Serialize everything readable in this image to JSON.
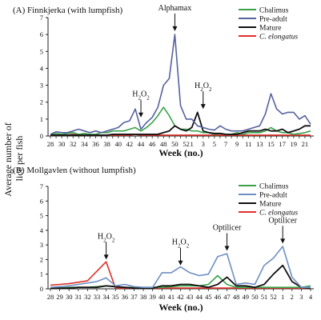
{
  "ylabel_line1": "Average number of",
  "ylabel_line2": "lice per fish",
  "chart_data": [
    {
      "type": "line",
      "title": "(A)   Finnkjerka (with lumpfish)",
      "xlabel": "Week (no.)",
      "ylim": [
        0,
        7
      ],
      "yticks": [
        0,
        1,
        2,
        3,
        4,
        5,
        6,
        7
      ],
      "weeks": [
        "28",
        "29",
        "30",
        "31",
        "32",
        "33",
        "34",
        "35",
        "36",
        "37",
        "38",
        "39",
        "40",
        "41",
        "42",
        "43",
        "44",
        "45",
        "46",
        "47",
        "48",
        "49",
        "50",
        "51",
        "52",
        "1",
        "2",
        "3",
        "4",
        "5",
        "6",
        "7",
        "8",
        "9",
        "10",
        "11",
        "12",
        "13",
        "14",
        "15",
        "16",
        "17",
        "18",
        "19",
        "20",
        "21",
        "22"
      ],
      "xtick_labels": [
        "28",
        "30",
        "32",
        "34",
        "36",
        "38",
        "40",
        "42",
        "44",
        "46",
        "48",
        "50",
        "52",
        "1",
        "3",
        "5",
        "7",
        "9",
        "11",
        "13",
        "15",
        "17",
        "19",
        "21"
      ],
      "series": [
        {
          "name": "Chalimus",
          "color": "#3aa34a",
          "values": [
            0.1,
            0.15,
            0.1,
            0.15,
            0.2,
            0.1,
            0.15,
            0.1,
            0.1,
            0.2,
            0.2,
            0.3,
            0.3,
            0.3,
            0.4,
            0.5,
            0.3,
            0.5,
            0.8,
            1.2,
            1.7,
            1.2,
            0.6,
            0.4,
            0.4,
            0.3,
            0.3,
            0.2,
            0.2,
            0.1,
            0.15,
            0.1,
            0.1,
            0.2,
            0.1,
            0.2,
            0.2,
            0.2,
            0.3,
            0.5,
            0.3,
            0.2,
            0.2,
            0.1,
            0.15,
            0.2,
            0.3
          ]
        },
        {
          "name": "Pre-adult",
          "color": "#5662a0",
          "values": [
            0.1,
            0.25,
            0.2,
            0.2,
            0.3,
            0.4,
            0.3,
            0.2,
            0.3,
            0.2,
            0.3,
            0.4,
            0.5,
            0.8,
            0.9,
            1.6,
            0.4,
            0.8,
            1.1,
            1.7,
            3.0,
            3.4,
            6.0,
            1.8,
            1.0,
            1.0,
            0.6,
            0.5,
            0.4,
            0.35,
            0.6,
            0.4,
            0.3,
            0.3,
            0.3,
            0.4,
            0.5,
            0.6,
            1.3,
            2.5,
            1.6,
            1.3,
            1.4,
            1.4,
            1.0,
            1.2,
            0.7
          ]
        },
        {
          "name": "Mature",
          "color": "#111111",
          "values": [
            0.05,
            0.05,
            0.05,
            0.05,
            0.05,
            0.05,
            0.05,
            0.05,
            0.05,
            0.05,
            0.05,
            0.1,
            0.1,
            0.1,
            0.1,
            0.1,
            0.1,
            0.1,
            0.1,
            0.1,
            0.2,
            0.3,
            0.6,
            0.4,
            0.3,
            0.5,
            1.4,
            0.3,
            0.2,
            0.15,
            0.15,
            0.1,
            0.1,
            0.1,
            0.2,
            0.3,
            0.3,
            0.3,
            0.4,
            0.3,
            0.3,
            0.4,
            0.2,
            0.3,
            0.4,
            0.6,
            0.6
          ]
        },
        {
          "name": "C. elongatus",
          "color": "#e0302a",
          "italic": true,
          "values": [
            0.05,
            0.05,
            0.05,
            0.05,
            0.1,
            0.05,
            0.05,
            0.05,
            0.05,
            0.05,
            0.05,
            0.05,
            0.05,
            0.05,
            0.05,
            0.1,
            0.05,
            0.05,
            0.05,
            0.05,
            0.05,
            0.05,
            0.05,
            0.05,
            0.05,
            0.05,
            0.05,
            0.05,
            0.05,
            0.05,
            0.05,
            0.05,
            0.05,
            0.05,
            0.05,
            0.05,
            0.05,
            0.05,
            0.05,
            0.05,
            0.05,
            0.05,
            0.05,
            0.05,
            0.05,
            0.05,
            0.05
          ]
        }
      ],
      "annotations": [
        {
          "text": "H2O2",
          "week": "44",
          "y": 1.1
        },
        {
          "text": "Alphamax",
          "week": "50",
          "y": 6.2
        },
        {
          "text": "H2O2",
          "week": "3",
          "y": 1.6
        }
      ]
    },
    {
      "type": "line",
      "title": "(B)   Mollgavlen (without lumpfish)",
      "xlabel": "Week (no.)",
      "ylim": [
        0,
        7
      ],
      "yticks": [
        0,
        1,
        2,
        3,
        4,
        5,
        6,
        7
      ],
      "weeks": [
        "28",
        "29",
        "30",
        "31",
        "32",
        "33",
        "34",
        "35",
        "36",
        "37",
        "38",
        "39",
        "40",
        "41",
        "42",
        "43",
        "44",
        "45",
        "46",
        "47",
        "48",
        "49",
        "50",
        "51",
        "52",
        "1",
        "2",
        "3",
        "4"
      ],
      "xtick_labels": [
        "28",
        "29",
        "30",
        "31",
        "32",
        "33",
        "34",
        "35",
        "36",
        "37",
        "38",
        "39",
        "40",
        "41",
        "42",
        "43",
        "44",
        "45",
        "46",
        "47",
        "48",
        "49",
        "50",
        "51",
        "52",
        "1",
        "2",
        "3",
        "4"
      ],
      "series": [
        {
          "name": "Chalimus",
          "color": "#3aa34a",
          "values": [
            0.05,
            0.05,
            0.1,
            0.1,
            0.1,
            0.15,
            0.2,
            0.15,
            0.1,
            0.1,
            0.1,
            0.1,
            0.1,
            0.15,
            0.2,
            0.2,
            0.2,
            0.3,
            0.9,
            0.3,
            0.1,
            0.1,
            0.1,
            0.1,
            0.1,
            0.1,
            0.1,
            0.1,
            0.2
          ]
        },
        {
          "name": "Pre-adult",
          "color": "#6f8fc4",
          "values": [
            0.1,
            0.15,
            0.2,
            0.3,
            0.4,
            0.5,
            0.75,
            0.2,
            0.3,
            0.15,
            0.1,
            0.1,
            1.1,
            1.1,
            1.5,
            1.1,
            0.9,
            1.0,
            2.2,
            2.4,
            0.3,
            0.4,
            0.3,
            1.6,
            2.1,
            2.9,
            0.8,
            0.1,
            0.1
          ]
        },
        {
          "name": "Mature",
          "color": "#111111",
          "values": [
            0.05,
            0.05,
            0.05,
            0.1,
            0.1,
            0.1,
            0.2,
            0.15,
            0.1,
            0.05,
            0.05,
            0.05,
            0.2,
            0.2,
            0.3,
            0.3,
            0.2,
            0.1,
            0.3,
            0.8,
            0.2,
            0.2,
            0.1,
            0.3,
            1.0,
            1.6,
            0.5,
            0.1,
            0.05
          ]
        },
        {
          "name": "C. elongatus",
          "color": "#e0302a",
          "italic": true,
          "values": [
            0.25,
            0.3,
            0.35,
            0.45,
            0.55,
            1.2,
            1.85,
            0.05,
            0.05,
            0.05,
            0.05,
            0.05,
            0.05,
            0.05,
            0.05,
            0.05,
            0.05,
            0.05,
            0.05,
            0.05,
            0.05,
            0.05,
            0.05,
            0.05,
            0.05,
            0.05,
            0.05,
            0.05,
            0.05
          ]
        }
      ],
      "annotations": [
        {
          "text": "H2O2",
          "week": "34",
          "y": 2.0
        },
        {
          "text": "H2O2",
          "week": "42",
          "y": 1.6
        },
        {
          "text": "Optilicer",
          "week": "47",
          "y": 2.6
        },
        {
          "text": "Optilicer",
          "week": "1",
          "y": 3.1
        }
      ]
    }
  ]
}
